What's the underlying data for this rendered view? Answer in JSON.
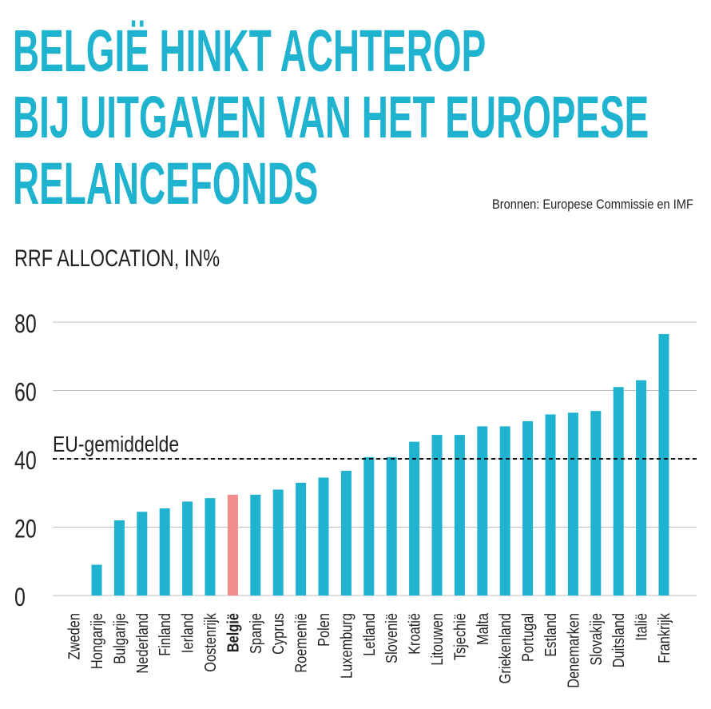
{
  "header": {
    "title_lines": [
      "BELGIË HINKT ACHTEROP",
      "BIJ UITGAVEN VAN HET EUROPESE",
      "RELANCEFONDS"
    ],
    "source": "Bronnen: Europese Commissie en IMF",
    "subtitle": "RRF ALLOCATION, IN%"
  },
  "colors": {
    "bar": "#1fb3cf",
    "highlight": "#f08c8c",
    "title": "#1fb3cf",
    "grid": "#bdbdbd",
    "text": "#222222"
  },
  "chart_data": {
    "type": "bar",
    "categories": [
      "Zweden",
      "Hongarije",
      "Bulgarije",
      "Nederland",
      "Finland",
      "Ierland",
      "Oostenrijk",
      "België",
      "Spanje",
      "Cyprus",
      "Roemenië",
      "Polen",
      "Luxemburg",
      "Letland",
      "Slovenië",
      "Kroatië",
      "Litouwen",
      "Tsjechië",
      "Malta",
      "Griekenland",
      "Portugal",
      "Estland",
      "Denemarken",
      "Slovakije",
      "Duitsland",
      "Italië",
      "Frankrijk"
    ],
    "values": [
      0,
      9,
      22,
      24.5,
      25.5,
      27.5,
      28.5,
      29.5,
      29.5,
      31,
      33,
      34.5,
      36.5,
      40.5,
      40.5,
      45,
      47,
      47,
      49.5,
      49.5,
      51,
      53,
      53.5,
      54,
      61,
      63,
      76.5
    ],
    "highlight": "België",
    "yticks": [
      0,
      20,
      40,
      60,
      80
    ],
    "ylim": [
      0,
      80
    ],
    "grid": true,
    "reference_line": {
      "label": "EU-gemiddelde",
      "value": 40
    }
  }
}
